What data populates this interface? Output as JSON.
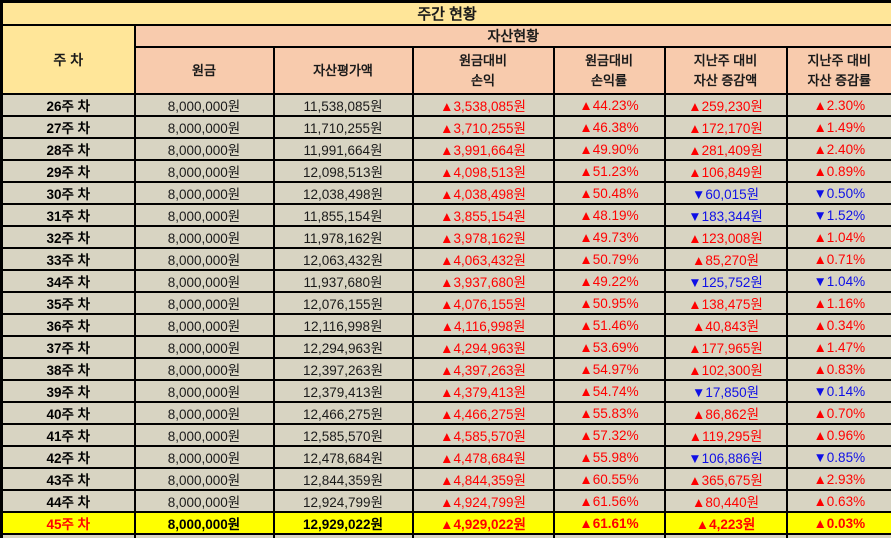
{
  "title": "주간 현황",
  "header": {
    "week_label": "주 차",
    "group_label": "자산현황",
    "columns": [
      "원금",
      "자산평가액",
      "원금대비\n손익",
      "원금대비\n손익률",
      "지난주 대비\n자산 증감액",
      "지난주 대비\n자산 증감률"
    ]
  },
  "colors": {
    "title_bg": "#FFE699",
    "header_bg": "#F8CBAD",
    "row_bg": "#D8D4C2",
    "highlight_bg": "#FFFF00",
    "up_color": "#FF0000",
    "down_color": "#0F0FE6",
    "border_color": "#000000"
  },
  "rows": [
    {
      "week": "26주 차",
      "principal": "8,000,000원",
      "valuation": "11,538,085원",
      "pl": {
        "text": "▲3,538,085원",
        "dir": "up"
      },
      "pl_rate": {
        "text": "▲44.23%",
        "dir": "up"
      },
      "wow_amount": {
        "text": "▲259,230원",
        "dir": "up"
      },
      "wow_rate": {
        "text": "▲2.30%",
        "dir": "up"
      },
      "highlight": false
    },
    {
      "week": "27주 차",
      "principal": "8,000,000원",
      "valuation": "11,710,255원",
      "pl": {
        "text": "▲3,710,255원",
        "dir": "up"
      },
      "pl_rate": {
        "text": "▲46.38%",
        "dir": "up"
      },
      "wow_amount": {
        "text": "▲172,170원",
        "dir": "up"
      },
      "wow_rate": {
        "text": "▲1.49%",
        "dir": "up"
      },
      "highlight": false
    },
    {
      "week": "28주 차",
      "principal": "8,000,000원",
      "valuation": "11,991,664원",
      "pl": {
        "text": "▲3,991,664원",
        "dir": "up"
      },
      "pl_rate": {
        "text": "▲49.90%",
        "dir": "up"
      },
      "wow_amount": {
        "text": "▲281,409원",
        "dir": "up"
      },
      "wow_rate": {
        "text": "▲2.40%",
        "dir": "up"
      },
      "highlight": false
    },
    {
      "week": "29주 차",
      "principal": "8,000,000원",
      "valuation": "12,098,513원",
      "pl": {
        "text": "▲4,098,513원",
        "dir": "up"
      },
      "pl_rate": {
        "text": "▲51.23%",
        "dir": "up"
      },
      "wow_amount": {
        "text": "▲106,849원",
        "dir": "up"
      },
      "wow_rate": {
        "text": "▲0.89%",
        "dir": "up"
      },
      "highlight": false
    },
    {
      "week": "30주 차",
      "principal": "8,000,000원",
      "valuation": "12,038,498원",
      "pl": {
        "text": "▲4,038,498원",
        "dir": "up"
      },
      "pl_rate": {
        "text": "▲50.48%",
        "dir": "up"
      },
      "wow_amount": {
        "text": "▼60,015원",
        "dir": "down"
      },
      "wow_rate": {
        "text": "▼0.50%",
        "dir": "down"
      },
      "highlight": false
    },
    {
      "week": "31주 차",
      "principal": "8,000,000원",
      "valuation": "11,855,154원",
      "pl": {
        "text": "▲3,855,154원",
        "dir": "up"
      },
      "pl_rate": {
        "text": "▲48.19%",
        "dir": "up"
      },
      "wow_amount": {
        "text": "▼183,344원",
        "dir": "down"
      },
      "wow_rate": {
        "text": "▼1.52%",
        "dir": "down"
      },
      "highlight": false
    },
    {
      "week": "32주 차",
      "principal": "8,000,000원",
      "valuation": "11,978,162원",
      "pl": {
        "text": "▲3,978,162원",
        "dir": "up"
      },
      "pl_rate": {
        "text": "▲49.73%",
        "dir": "up"
      },
      "wow_amount": {
        "text": "▲123,008원",
        "dir": "up"
      },
      "wow_rate": {
        "text": "▲1.04%",
        "dir": "up"
      },
      "highlight": false
    },
    {
      "week": "33주 차",
      "principal": "8,000,000원",
      "valuation": "12,063,432원",
      "pl": {
        "text": "▲4,063,432원",
        "dir": "up"
      },
      "pl_rate": {
        "text": "▲50.79%",
        "dir": "up"
      },
      "wow_amount": {
        "text": "▲85,270원",
        "dir": "up"
      },
      "wow_rate": {
        "text": "▲0.71%",
        "dir": "up"
      },
      "highlight": false
    },
    {
      "week": "34주 차",
      "principal": "8,000,000원",
      "valuation": "11,937,680원",
      "pl": {
        "text": "▲3,937,680원",
        "dir": "up"
      },
      "pl_rate": {
        "text": "▲49.22%",
        "dir": "up"
      },
      "wow_amount": {
        "text": "▼125,752원",
        "dir": "down"
      },
      "wow_rate": {
        "text": "▼1.04%",
        "dir": "down"
      },
      "highlight": false
    },
    {
      "week": "35주 차",
      "principal": "8,000,000원",
      "valuation": "12,076,155원",
      "pl": {
        "text": "▲4,076,155원",
        "dir": "up"
      },
      "pl_rate": {
        "text": "▲50.95%",
        "dir": "up"
      },
      "wow_amount": {
        "text": "▲138,475원",
        "dir": "up"
      },
      "wow_rate": {
        "text": "▲1.16%",
        "dir": "up"
      },
      "highlight": false
    },
    {
      "week": "36주 차",
      "principal": "8,000,000원",
      "valuation": "12,116,998원",
      "pl": {
        "text": "▲4,116,998원",
        "dir": "up"
      },
      "pl_rate": {
        "text": "▲51.46%",
        "dir": "up"
      },
      "wow_amount": {
        "text": "▲40,843원",
        "dir": "up"
      },
      "wow_rate": {
        "text": "▲0.34%",
        "dir": "up"
      },
      "highlight": false
    },
    {
      "week": "37주 차",
      "principal": "8,000,000원",
      "valuation": "12,294,963원",
      "pl": {
        "text": "▲4,294,963원",
        "dir": "up"
      },
      "pl_rate": {
        "text": "▲53.69%",
        "dir": "up"
      },
      "wow_amount": {
        "text": "▲177,965원",
        "dir": "up"
      },
      "wow_rate": {
        "text": "▲1.47%",
        "dir": "up"
      },
      "highlight": false
    },
    {
      "week": "38주 차",
      "principal": "8,000,000원",
      "valuation": "12,397,263원",
      "pl": {
        "text": "▲4,397,263원",
        "dir": "up"
      },
      "pl_rate": {
        "text": "▲54.97%",
        "dir": "up"
      },
      "wow_amount": {
        "text": "▲102,300원",
        "dir": "up"
      },
      "wow_rate": {
        "text": "▲0.83%",
        "dir": "up"
      },
      "highlight": false
    },
    {
      "week": "39주 차",
      "principal": "8,000,000원",
      "valuation": "12,379,413원",
      "pl": {
        "text": "▲4,379,413원",
        "dir": "up"
      },
      "pl_rate": {
        "text": "▲54.74%",
        "dir": "up"
      },
      "wow_amount": {
        "text": "▼17,850원",
        "dir": "down"
      },
      "wow_rate": {
        "text": "▼0.14%",
        "dir": "down"
      },
      "highlight": false
    },
    {
      "week": "40주 차",
      "principal": "8,000,000원",
      "valuation": "12,466,275원",
      "pl": {
        "text": "▲4,466,275원",
        "dir": "up"
      },
      "pl_rate": {
        "text": "▲55.83%",
        "dir": "up"
      },
      "wow_amount": {
        "text": "▲86,862원",
        "dir": "up"
      },
      "wow_rate": {
        "text": "▲0.70%",
        "dir": "up"
      },
      "highlight": false
    },
    {
      "week": "41주 차",
      "principal": "8,000,000원",
      "valuation": "12,585,570원",
      "pl": {
        "text": "▲4,585,570원",
        "dir": "up"
      },
      "pl_rate": {
        "text": "▲57.32%",
        "dir": "up"
      },
      "wow_amount": {
        "text": "▲119,295원",
        "dir": "up"
      },
      "wow_rate": {
        "text": "▲0.96%",
        "dir": "up"
      },
      "highlight": false
    },
    {
      "week": "42주 차",
      "principal": "8,000,000원",
      "valuation": "12,478,684원",
      "pl": {
        "text": "▲4,478,684원",
        "dir": "up"
      },
      "pl_rate": {
        "text": "▲55.98%",
        "dir": "up"
      },
      "wow_amount": {
        "text": "▼106,886원",
        "dir": "down"
      },
      "wow_rate": {
        "text": "▼0.85%",
        "dir": "down"
      },
      "highlight": false
    },
    {
      "week": "43주 차",
      "principal": "8,000,000원",
      "valuation": "12,844,359원",
      "pl": {
        "text": "▲4,844,359원",
        "dir": "up"
      },
      "pl_rate": {
        "text": "▲60.55%",
        "dir": "up"
      },
      "wow_amount": {
        "text": "▲365,675원",
        "dir": "up"
      },
      "wow_rate": {
        "text": "▲2.93%",
        "dir": "up"
      },
      "highlight": false
    },
    {
      "week": "44주 차",
      "principal": "8,000,000원",
      "valuation": "12,924,799원",
      "pl": {
        "text": "▲4,924,799원",
        "dir": "up"
      },
      "pl_rate": {
        "text": "▲61.56%",
        "dir": "up"
      },
      "wow_amount": {
        "text": "▲80,440원",
        "dir": "up"
      },
      "wow_rate": {
        "text": "▲0.63%",
        "dir": "up"
      },
      "highlight": false
    },
    {
      "week": "45주 차",
      "principal": "8,000,000원",
      "valuation": "12,929,022원",
      "pl": {
        "text": "▲4,929,022원",
        "dir": "up"
      },
      "pl_rate": {
        "text": "▲61.61%",
        "dir": "up"
      },
      "wow_amount": {
        "text": "▲4,223원",
        "dir": "up"
      },
      "wow_rate": {
        "text": "▲0.03%",
        "dir": "up"
      },
      "highlight": true
    }
  ]
}
